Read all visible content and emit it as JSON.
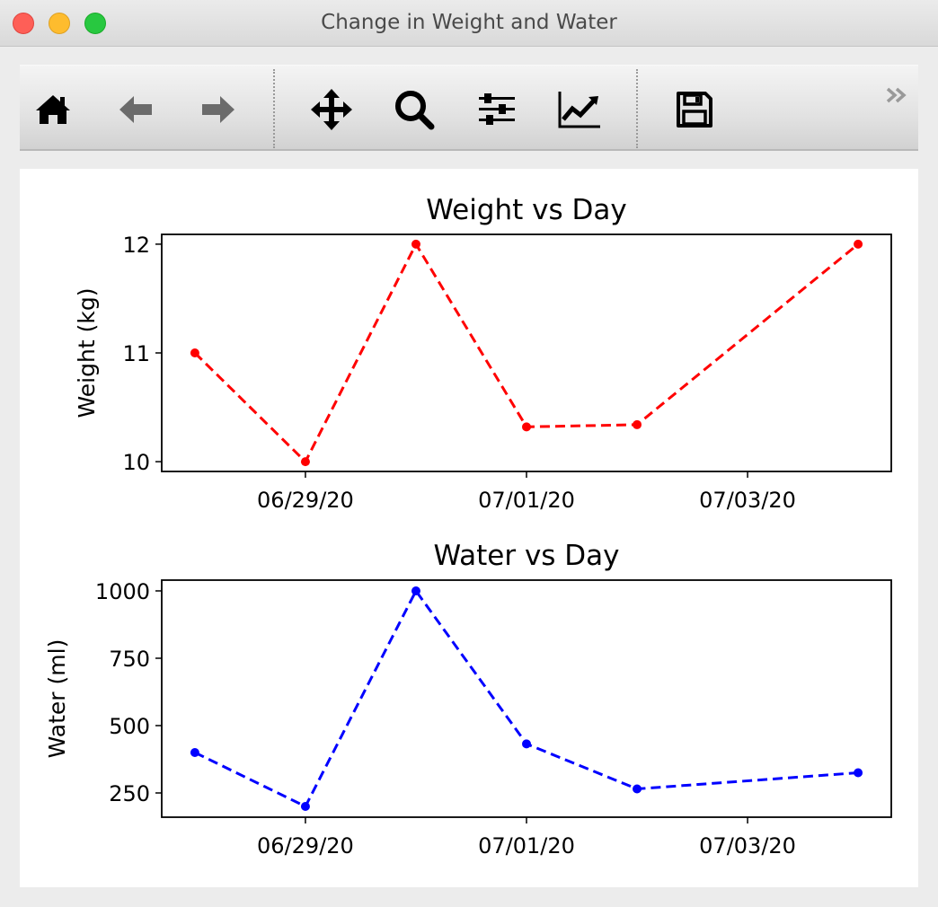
{
  "window": {
    "title": "Change in Weight and Water"
  },
  "toolbar": {
    "buttons": [
      {
        "name": "home",
        "icon": "home-icon"
      },
      {
        "name": "back",
        "icon": "arrow-left-icon"
      },
      {
        "name": "forward",
        "icon": "arrow-right-icon"
      },
      {
        "name": "pan",
        "icon": "move-arrows-icon"
      },
      {
        "name": "zoom",
        "icon": "magnifier-icon"
      },
      {
        "name": "configure-subplots",
        "icon": "sliders-icon"
      },
      {
        "name": "edit-axes",
        "icon": "line-chart-icon"
      },
      {
        "name": "save",
        "icon": "floppy-disk-icon"
      }
    ],
    "overflow_icon": "chevron-double-right-icon"
  },
  "chart_data": [
    {
      "type": "line",
      "title": "Weight vs Day",
      "xlabel": "",
      "ylabel": "Weight (kg)",
      "x": [
        "06/28/20",
        "06/29/20",
        "06/30/20",
        "07/01/20",
        "07/02/20",
        "07/04/20"
      ],
      "series": [
        {
          "values": [
            11,
            10,
            12,
            10.32,
            10.34,
            12
          ],
          "color": "#ff0000",
          "linestyle": "dashed",
          "marker": "dot"
        }
      ],
      "xticks": [
        "06/29/20",
        "07/01/20",
        "07/03/20"
      ],
      "yticks": [
        10,
        11,
        12
      ],
      "xlim": [
        "06/27/20 (approx)",
        "07/04/20 (approx)"
      ],
      "ylim": [
        9.91,
        12.09
      ],
      "grid": false
    },
    {
      "type": "line",
      "title": "Water vs Day",
      "xlabel": "",
      "ylabel": "Water (ml)",
      "x": [
        "06/28/20",
        "06/29/20",
        "06/30/20",
        "07/01/20",
        "07/02/20",
        "07/04/20"
      ],
      "series": [
        {
          "values": [
            400,
            200,
            1000,
            432,
            265,
            325
          ],
          "color": "#0000ff",
          "linestyle": "dashed",
          "marker": "dot"
        }
      ],
      "xticks": [
        "06/29/20",
        "07/01/20",
        "07/03/20"
      ],
      "yticks": [
        250,
        500,
        750,
        1000
      ],
      "ylim": [
        160,
        1040
      ],
      "grid": false
    }
  ]
}
